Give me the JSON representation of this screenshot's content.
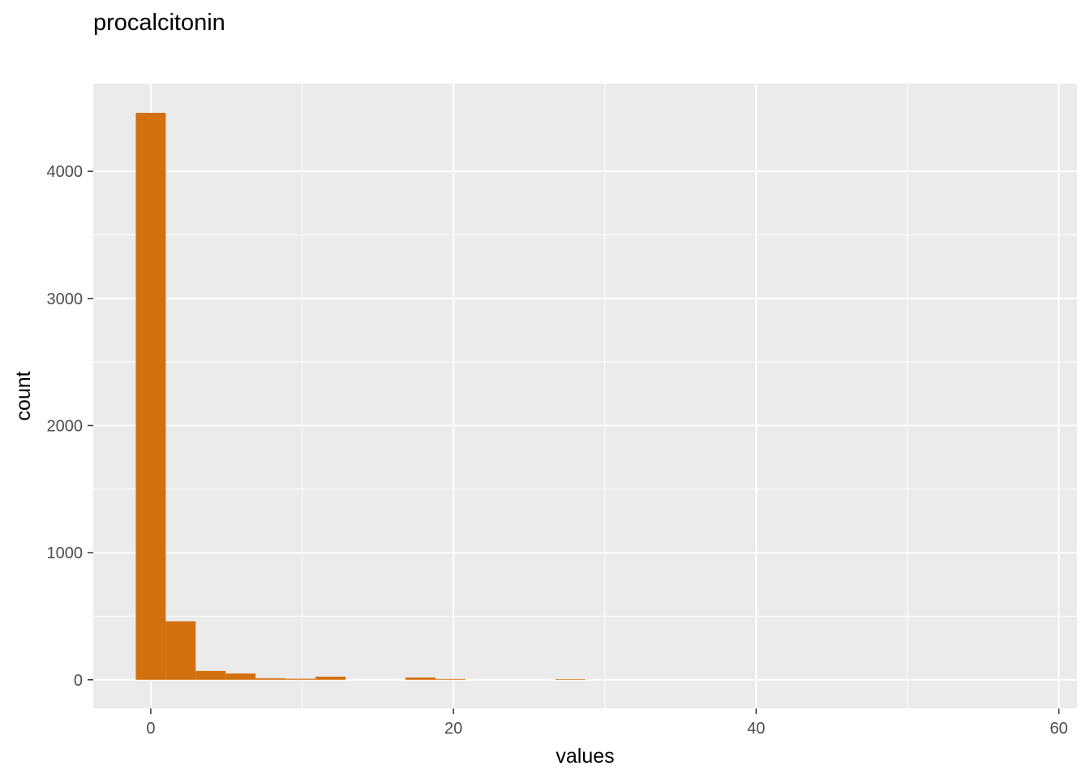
{
  "chart_data": {
    "type": "bar",
    "subtype": "histogram",
    "title": "procalcitonin",
    "xlabel": "values",
    "ylabel": "count",
    "xlim": [
      -3.8,
      61.2
    ],
    "ylim": [
      -225,
      4690
    ],
    "x_ticks": [
      0,
      20,
      40,
      60
    ],
    "y_ticks": [
      0,
      1000,
      2000,
      3000,
      4000
    ],
    "grid": true,
    "bin_width": 1.98,
    "bins": [
      {
        "start": -0.99,
        "count": 4460
      },
      {
        "start": 0.99,
        "count": 460
      },
      {
        "start": 2.97,
        "count": 70
      },
      {
        "start": 4.95,
        "count": 50
      },
      {
        "start": 6.93,
        "count": 12
      },
      {
        "start": 8.91,
        "count": 8
      },
      {
        "start": 10.89,
        "count": 25
      },
      {
        "start": 12.87,
        "count": 0
      },
      {
        "start": 14.85,
        "count": 0
      },
      {
        "start": 16.83,
        "count": 18
      },
      {
        "start": 18.81,
        "count": 6
      },
      {
        "start": 20.79,
        "count": 0
      },
      {
        "start": 22.77,
        "count": 0
      },
      {
        "start": 24.75,
        "count": 0
      },
      {
        "start": 26.73,
        "count": 5
      }
    ],
    "colors": {
      "bar": "#D2700F",
      "panel": "#EBEBEB",
      "grid": "#FFFFFF"
    }
  }
}
